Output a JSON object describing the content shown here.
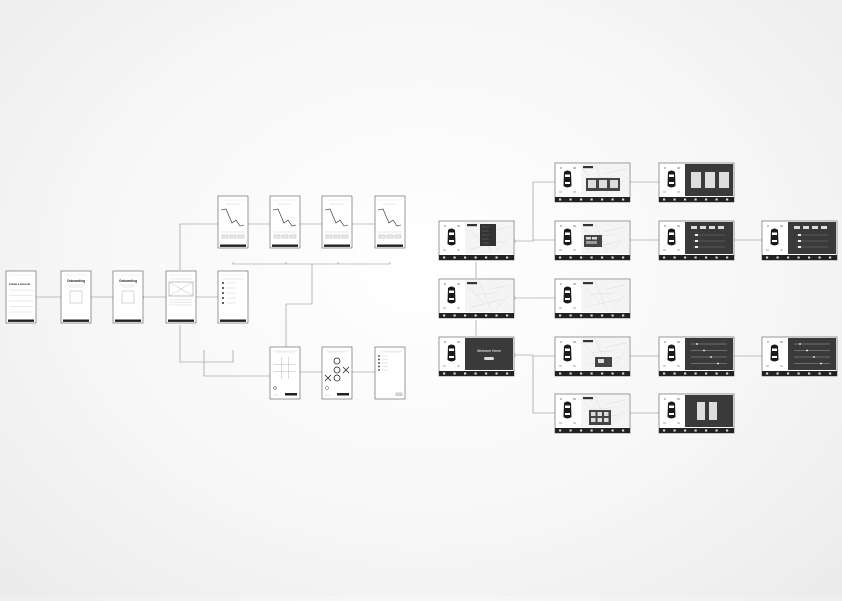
{
  "diagram": {
    "colors": {
      "connector": "#8a8a8a",
      "phone_border": "#555555",
      "screen_bg": "#ffffff",
      "dark_panel": "#3a3a3a",
      "car_body": "#1a1a1a"
    },
    "phone_flow": {
      "screens": [
        {
          "id": "p-signup",
          "kind": "form",
          "title": "Create a Account"
        },
        {
          "id": "p-onboarding-1",
          "kind": "onboarding",
          "title": "Onboarding"
        },
        {
          "id": "p-onboarding-2",
          "kind": "onboarding",
          "title": "Onboarding"
        },
        {
          "id": "p-hub",
          "kind": "card",
          "title": ""
        },
        {
          "id": "p-list",
          "kind": "list",
          "title": ""
        },
        {
          "id": "p-chart-1",
          "kind": "chart",
          "title": ""
        },
        {
          "id": "p-chart-2",
          "kind": "chart",
          "title": ""
        },
        {
          "id": "p-chart-3",
          "kind": "chart",
          "title": ""
        },
        {
          "id": "p-chart-4",
          "kind": "chart",
          "title": ""
        },
        {
          "id": "p-game-empty",
          "kind": "game-grid",
          "title": ""
        },
        {
          "id": "p-game-play",
          "kind": "game-xo",
          "title": ""
        },
        {
          "id": "p-menu",
          "kind": "menu",
          "title": ""
        }
      ]
    },
    "car_flow": {
      "screens": [
        {
          "id": "c-menu",
          "kind": "map-menu"
        },
        {
          "id": "c-home",
          "kind": "map"
        },
        {
          "id": "c-welcome",
          "kind": "welcome",
          "text": "Welcome Home"
        },
        {
          "id": "c-b1",
          "kind": "map-panels"
        },
        {
          "id": "c-b2",
          "kind": "map-popup"
        },
        {
          "id": "c-b3",
          "kind": "map"
        },
        {
          "id": "c-b4",
          "kind": "map-popup-small"
        },
        {
          "id": "c-b5",
          "kind": "map-grid"
        },
        {
          "id": "c-c1",
          "kind": "dark-cards"
        },
        {
          "id": "c-c2",
          "kind": "dark-buttons"
        },
        {
          "id": "c-c3",
          "kind": "dark-sliders"
        },
        {
          "id": "c-c4",
          "kind": "dark-pair"
        },
        {
          "id": "c-d2",
          "kind": "dark-buttons"
        },
        {
          "id": "c-d3",
          "kind": "dark-sliders"
        }
      ]
    }
  }
}
